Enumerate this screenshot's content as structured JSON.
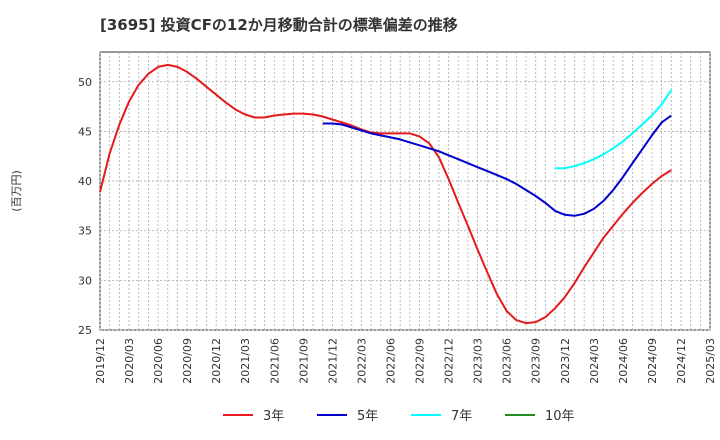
{
  "chart_data": {
    "type": "line",
    "title": "[3695]  投資CFの12か月移動合計の標準偏差の推移",
    "ylabel": "(百万円)",
    "xlabel": "",
    "ylim": [
      25,
      53
    ],
    "yticks": [
      25,
      30,
      35,
      40,
      45,
      50
    ],
    "xlim": [
      "2019-12",
      "2025-03"
    ],
    "xticks": [
      "2019/12",
      "2020/03",
      "2020/06",
      "2020/09",
      "2020/12",
      "2021/03",
      "2021/06",
      "2021/09",
      "2021/12",
      "2022/03",
      "2022/06",
      "2022/09",
      "2022/12",
      "2023/03",
      "2023/06",
      "2023/09",
      "2023/12",
      "2024/03",
      "2024/06",
      "2024/09",
      "2024/12",
      "2025/03"
    ],
    "grid": true,
    "legend_position": "bottom",
    "series": [
      {
        "name": "3年",
        "color": "#e41a1c",
        "points": [
          [
            "2019-12",
            38.9
          ],
          [
            "2020-01",
            42.8
          ],
          [
            "2020-02",
            45.7
          ],
          [
            "2020-03",
            48.0
          ],
          [
            "2020-04",
            49.7
          ],
          [
            "2020-05",
            50.8
          ],
          [
            "2020-06",
            51.5
          ],
          [
            "2020-07",
            51.7
          ],
          [
            "2020-08",
            51.5
          ],
          [
            "2020-09",
            51.0
          ],
          [
            "2020-10",
            50.3
          ],
          [
            "2020-11",
            49.5
          ],
          [
            "2020-12",
            48.7
          ],
          [
            "2021-01",
            47.9
          ],
          [
            "2021-02",
            47.2
          ],
          [
            "2021-03",
            46.7
          ],
          [
            "2021-04",
            46.4
          ],
          [
            "2021-05",
            46.4
          ],
          [
            "2021-06",
            46.6
          ],
          [
            "2021-07",
            46.7
          ],
          [
            "2021-08",
            46.8
          ],
          [
            "2021-09",
            46.8
          ],
          [
            "2021-10",
            46.7
          ],
          [
            "2021-11",
            46.5
          ],
          [
            "2021-12",
            46.2
          ],
          [
            "2022-01",
            45.9
          ],
          [
            "2022-02",
            45.6
          ],
          [
            "2022-03",
            45.2
          ],
          [
            "2022-04",
            44.9
          ],
          [
            "2022-05",
            44.8
          ],
          [
            "2022-06",
            44.8
          ],
          [
            "2022-07",
            44.8
          ],
          [
            "2022-08",
            44.8
          ],
          [
            "2022-09",
            44.5
          ],
          [
            "2022-10",
            43.8
          ],
          [
            "2022-11",
            42.4
          ],
          [
            "2022-12",
            40.2
          ],
          [
            "2023-01",
            37.8
          ],
          [
            "2023-02",
            35.5
          ],
          [
            "2023-03",
            33.1
          ],
          [
            "2023-04",
            30.8
          ],
          [
            "2023-05",
            28.6
          ],
          [
            "2023-06",
            26.9
          ],
          [
            "2023-07",
            26.0
          ],
          [
            "2023-08",
            25.7
          ],
          [
            "2023-09",
            25.8
          ],
          [
            "2023-10",
            26.3
          ],
          [
            "2023-11",
            27.2
          ],
          [
            "2023-12",
            28.3
          ],
          [
            "2024-01",
            29.7
          ],
          [
            "2024-02",
            31.3
          ],
          [
            "2024-03",
            32.8
          ],
          [
            "2024-04",
            34.3
          ],
          [
            "2024-05",
            35.5
          ],
          [
            "2024-06",
            36.7
          ],
          [
            "2024-07",
            37.8
          ],
          [
            "2024-08",
            38.8
          ],
          [
            "2024-09",
            39.7
          ],
          [
            "2024-10",
            40.5
          ],
          [
            "2024-11",
            41.1
          ]
        ]
      },
      {
        "name": "5年",
        "color": "#0000cc",
        "points": [
          [
            "2021-11",
            45.8
          ],
          [
            "2021-12",
            45.8
          ],
          [
            "2022-01",
            45.7
          ],
          [
            "2022-02",
            45.4
          ],
          [
            "2022-03",
            45.1
          ],
          [
            "2022-04",
            44.8
          ],
          [
            "2022-05",
            44.6
          ],
          [
            "2022-06",
            44.4
          ],
          [
            "2022-07",
            44.2
          ],
          [
            "2022-08",
            43.9
          ],
          [
            "2022-09",
            43.6
          ],
          [
            "2022-10",
            43.3
          ],
          [
            "2022-11",
            43.0
          ],
          [
            "2022-12",
            42.6
          ],
          [
            "2023-01",
            42.2
          ],
          [
            "2023-02",
            41.8
          ],
          [
            "2023-03",
            41.4
          ],
          [
            "2023-04",
            41.0
          ],
          [
            "2023-05",
            40.6
          ],
          [
            "2023-06",
            40.2
          ],
          [
            "2023-07",
            39.7
          ],
          [
            "2023-08",
            39.1
          ],
          [
            "2023-09",
            38.5
          ],
          [
            "2023-10",
            37.8
          ],
          [
            "2023-11",
            37.0
          ],
          [
            "2023-12",
            36.6
          ],
          [
            "2024-01",
            36.5
          ],
          [
            "2024-02",
            36.7
          ],
          [
            "2024-03",
            37.2
          ],
          [
            "2024-04",
            38.0
          ],
          [
            "2024-05",
            39.1
          ],
          [
            "2024-06",
            40.4
          ],
          [
            "2024-07",
            41.8
          ],
          [
            "2024-08",
            43.2
          ],
          [
            "2024-09",
            44.6
          ],
          [
            "2024-10",
            45.9
          ],
          [
            "2024-11",
            46.6
          ]
        ]
      },
      {
        "name": "7年",
        "color": "#00ffff",
        "points": [
          [
            "2023-11",
            41.3
          ],
          [
            "2023-12",
            41.3
          ],
          [
            "2024-01",
            41.5
          ],
          [
            "2024-02",
            41.8
          ],
          [
            "2024-03",
            42.2
          ],
          [
            "2024-04",
            42.7
          ],
          [
            "2024-05",
            43.3
          ],
          [
            "2024-06",
            44.0
          ],
          [
            "2024-07",
            44.8
          ],
          [
            "2024-08",
            45.7
          ],
          [
            "2024-09",
            46.6
          ],
          [
            "2024-10",
            47.7
          ],
          [
            "2024-11",
            49.2
          ]
        ]
      },
      {
        "name": "10年",
        "color": "#228b22",
        "points": []
      }
    ]
  }
}
